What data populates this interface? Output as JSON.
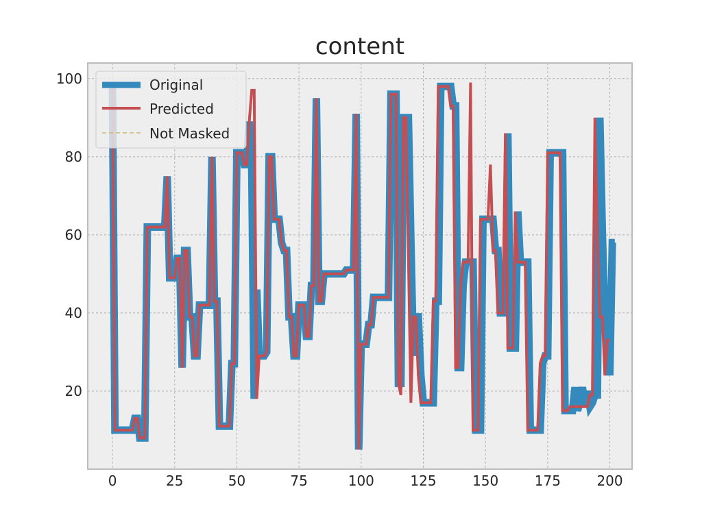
{
  "chart_data": {
    "type": "line",
    "title": "content",
    "xlabel": "",
    "ylabel": "",
    "xlim": [
      -9.95,
      208.95
    ],
    "ylim": [
      0,
      104
    ],
    "x_ticks": [
      0,
      25,
      50,
      75,
      100,
      125,
      150,
      175,
      200
    ],
    "y_ticks": [
      20,
      40,
      60,
      80,
      100
    ],
    "grid": true,
    "legend_position": "top-left",
    "series": [
      {
        "name": "Original",
        "color": "#348abd",
        "values": [
          98,
          10,
          10,
          10,
          10,
          10,
          10,
          10,
          10,
          13,
          13,
          8,
          8,
          8,
          62,
          62,
          62,
          62,
          62,
          62,
          62,
          62,
          75,
          49,
          49,
          49,
          54,
          54,
          26,
          56,
          56,
          39,
          39,
          29,
          29,
          42,
          42,
          42,
          42,
          42,
          80,
          43,
          43,
          11,
          11,
          11,
          11,
          11,
          27,
          27,
          81,
          81,
          81,
          78,
          78,
          89,
          78,
          18,
          46,
          29,
          29,
          29,
          30,
          80,
          80,
          64,
          64,
          64,
          58,
          56,
          56,
          39,
          39,
          29,
          29,
          42,
          42,
          42,
          34,
          34,
          47,
          47,
          95,
          43,
          43,
          50,
          50,
          50,
          50,
          50,
          50,
          50,
          50,
          50,
          51,
          51,
          51,
          51,
          91,
          5,
          32,
          32,
          32,
          37,
          37,
          44,
          44,
          44,
          44,
          44,
          44,
          44,
          96,
          96,
          96,
          22,
          22,
          90,
          90,
          90,
          58,
          29,
          39,
          39,
          24,
          17,
          17,
          17,
          17,
          17,
          43,
          43,
          98,
          98,
          98,
          98,
          98,
          93,
          93,
          26,
          26,
          47,
          53,
          53,
          53,
          53,
          10,
          10,
          10,
          64,
          64,
          64,
          64,
          64,
          56,
          56,
          40,
          40,
          40,
          86,
          31,
          31,
          31,
          66,
          53,
          53,
          53,
          53,
          10,
          10,
          10,
          10,
          10,
          27,
          29,
          29,
          81,
          81,
          81,
          81,
          81,
          81,
          15,
          15,
          15,
          15,
          21,
          15,
          17,
          21,
          16,
          20,
          16,
          17,
          19,
          19,
          90,
          60,
          39,
          39,
          24,
          58,
          58
        ],
        "line_width": 11
      },
      {
        "name": "Predicted",
        "color": "#c44e52",
        "values": [
          98,
          10,
          10,
          10,
          10,
          10,
          10,
          10,
          10,
          13,
          13,
          8,
          8,
          8,
          62,
          62,
          62,
          62,
          62,
          62,
          62,
          62,
          75,
          49,
          49,
          49,
          54,
          54,
          26,
          56,
          56,
          39,
          39,
          29,
          29,
          42,
          42,
          42,
          42,
          42,
          80,
          43,
          43,
          11,
          11,
          11,
          11,
          11,
          27,
          27,
          81,
          81,
          81,
          78,
          78,
          89,
          97,
          97,
          18,
          29,
          29,
          29,
          30,
          80,
          80,
          64,
          64,
          64,
          58,
          56,
          56,
          39,
          39,
          29,
          29,
          42,
          42,
          42,
          34,
          34,
          47,
          47,
          95,
          43,
          43,
          50,
          50,
          50,
          50,
          50,
          50,
          50,
          50,
          50,
          51,
          51,
          51,
          51,
          91,
          5,
          32,
          32,
          32,
          37,
          37,
          44,
          44,
          44,
          44,
          44,
          44,
          44,
          96,
          96,
          96,
          22,
          19,
          90,
          90,
          55,
          17,
          39,
          39,
          24,
          17,
          17,
          17,
          17,
          17,
          43,
          43,
          98,
          98,
          98,
          98,
          98,
          93,
          93,
          26,
          26,
          47,
          53,
          53,
          53,
          99,
          10,
          10,
          10,
          64,
          64,
          64,
          64,
          78,
          56,
          56,
          40,
          40,
          40,
          86,
          31,
          31,
          31,
          66,
          53,
          53,
          53,
          53,
          10,
          10,
          10,
          10,
          10,
          27,
          29,
          29,
          81,
          81,
          81,
          81,
          81,
          81,
          15,
          15,
          15,
          16,
          16,
          16,
          16,
          16,
          16,
          16,
          16,
          19,
          19,
          90,
          60,
          39,
          39,
          24,
          33,
          33
        ],
        "line_width": 4
      },
      {
        "name": "Not Masked",
        "color": "#ccb974",
        "values": [],
        "line_width": 1.5,
        "dashed": true
      }
    ]
  }
}
